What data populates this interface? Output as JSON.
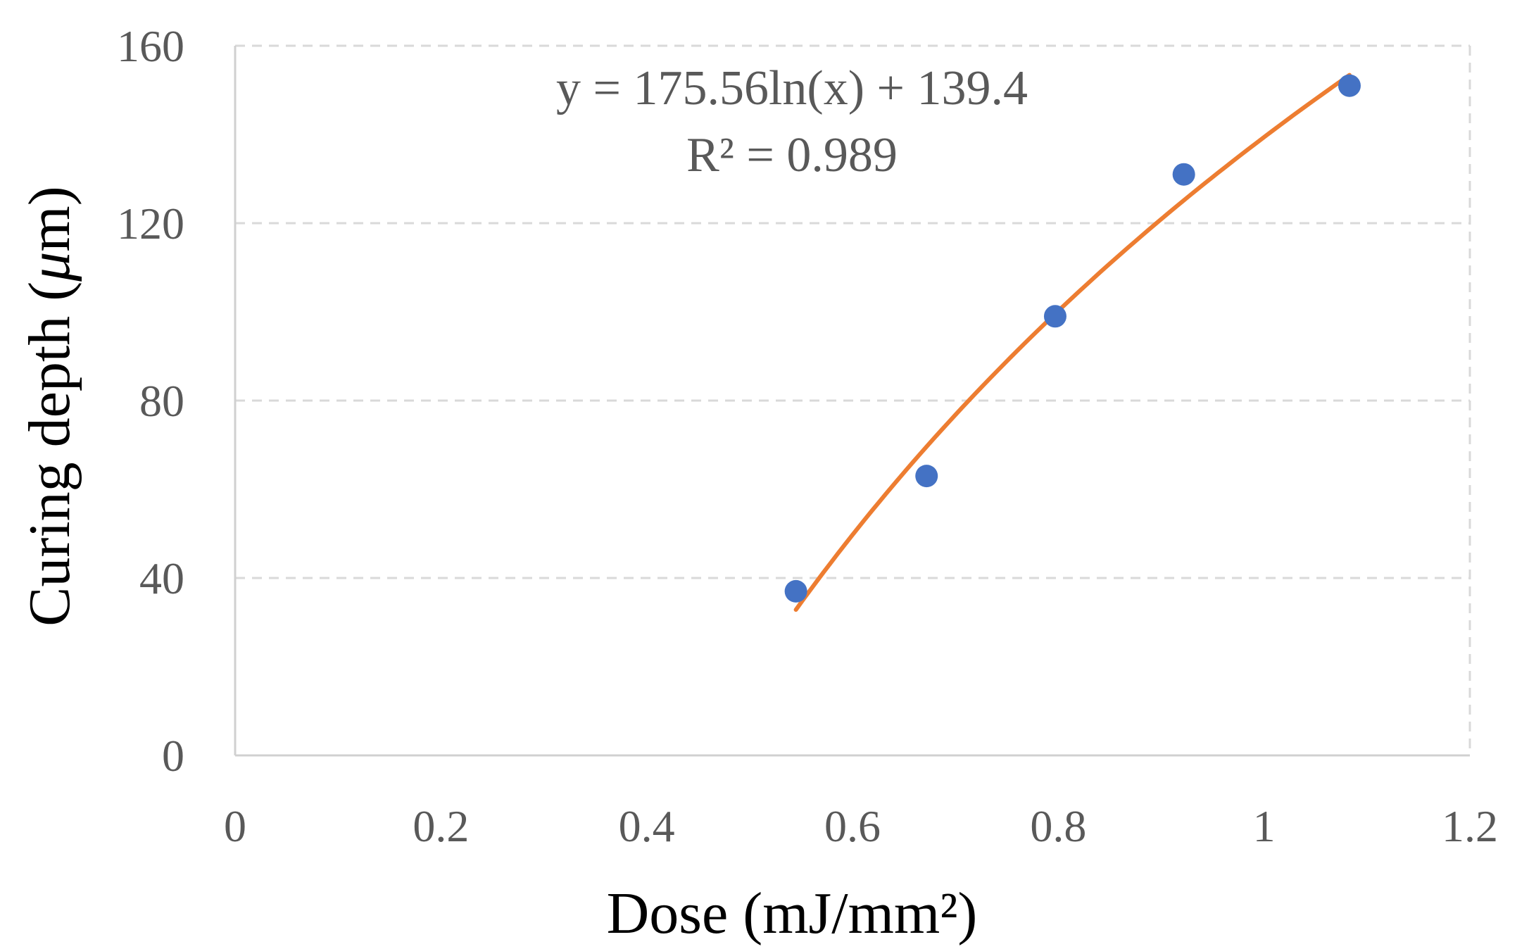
{
  "chart_data": {
    "type": "scatter",
    "xlabel": "Dose (mJ/mm²)",
    "ylabel_main": "Curing depth (",
    "ylabel_mu": "μ",
    "ylabel_end": "m)",
    "xlim": [
      0,
      1.2
    ],
    "ylim": [
      0,
      160
    ],
    "x_ticks": [
      "0",
      "0.2",
      "0.4",
      "0.6",
      "0.8",
      "1",
      "1.2"
    ],
    "y_ticks": [
      "0",
      "40",
      "80",
      "120",
      "160"
    ],
    "grid": "horizontal-dashed",
    "marker_color": "#4472C4",
    "trend_color": "#ED7D31",
    "points": [
      {
        "x": 0.545,
        "y": 37
      },
      {
        "x": 0.672,
        "y": 63
      },
      {
        "x": 0.797,
        "y": 99
      },
      {
        "x": 0.922,
        "y": 131
      },
      {
        "x": 1.083,
        "y": 151
      }
    ],
    "trendline": {
      "type": "logarithmic",
      "a": 175.56,
      "b": 139.4,
      "x_range": [
        0.545,
        1.083
      ],
      "equation": "y = 175.56ln(x) + 139.4",
      "r_squared": "R² = 0.989"
    }
  }
}
